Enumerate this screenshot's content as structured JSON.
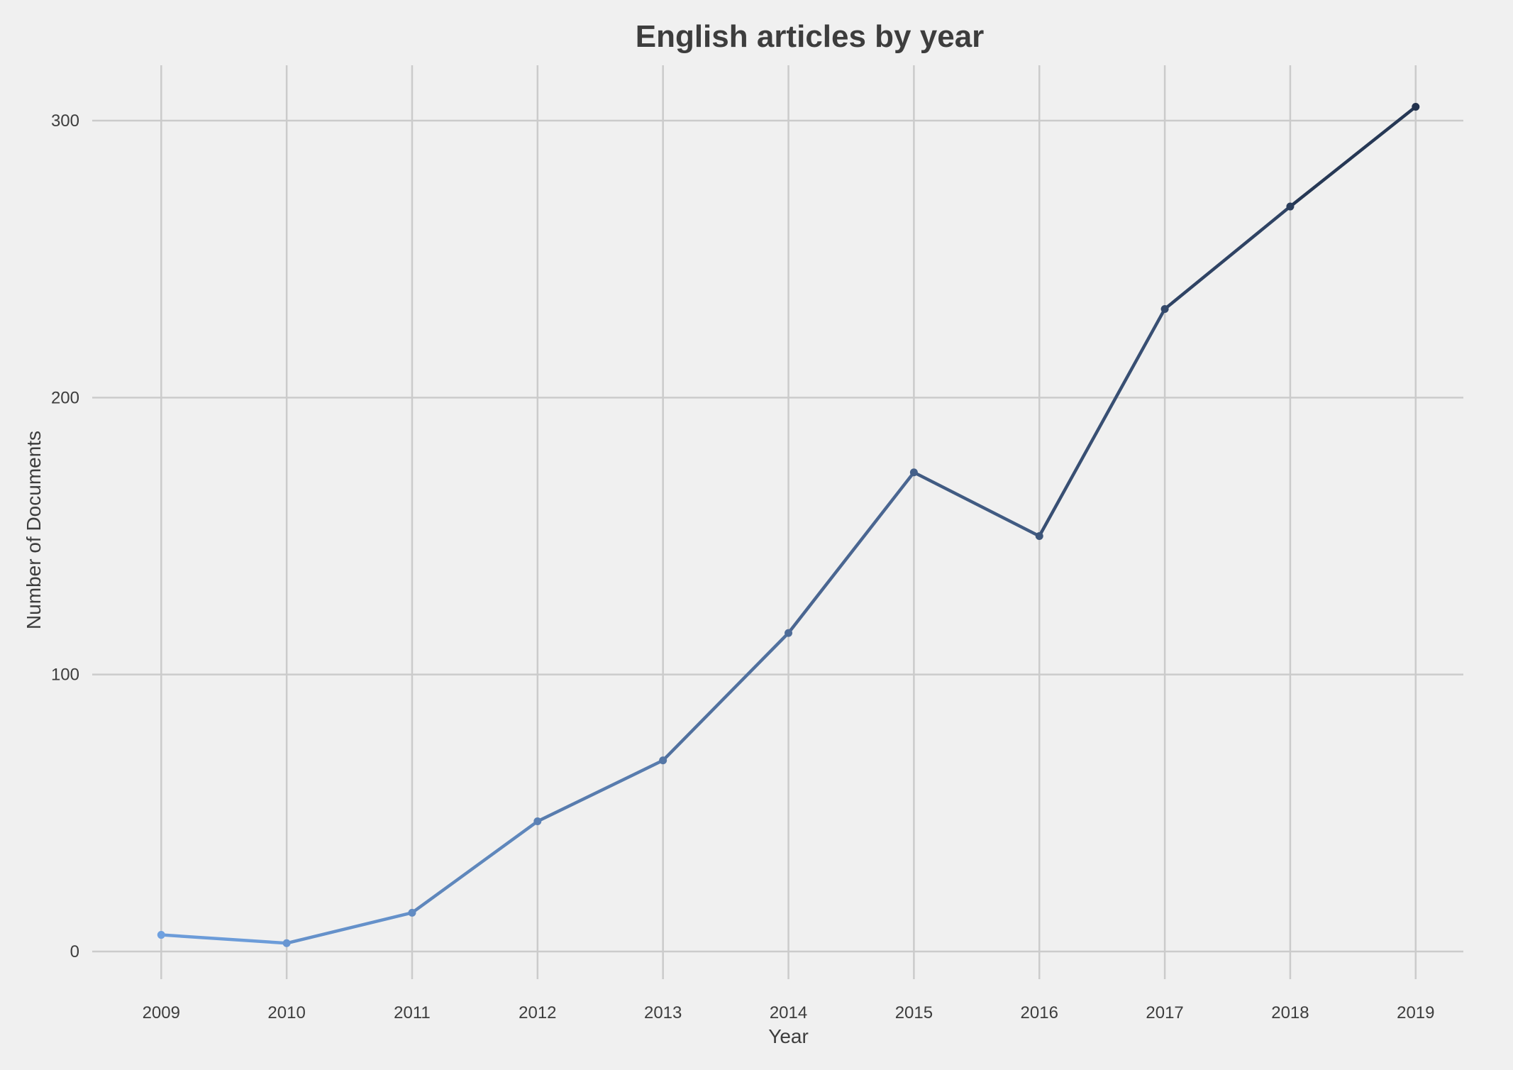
{
  "chart_data": {
    "type": "line",
    "title": "English articles by year",
    "xlabel": "Year",
    "ylabel": "Number of Documents",
    "x": [
      2009,
      2010,
      2011,
      2012,
      2013,
      2014,
      2015,
      2016,
      2017,
      2018,
      2019
    ],
    "x_tick_labels": [
      "2009",
      "2010",
      "2011",
      "2012",
      "2013",
      "2014",
      "2015",
      "2016",
      "2017",
      "2018",
      "2019"
    ],
    "y_ticks": [
      0,
      100,
      200,
      300
    ],
    "y_tick_labels": [
      "0",
      "100",
      "200",
      "300"
    ],
    "xlim": [
      2008.45,
      2019.38
    ],
    "ylim": [
      -10,
      320
    ],
    "grid": true,
    "legend": "none",
    "series": [
      {
        "values": [
          6,
          3,
          14,
          47,
          69,
          115,
          173,
          150,
          232,
          269,
          305
        ],
        "color_gradient": [
          "#6fa1e0",
          "#4e6c98",
          "#22324d"
        ]
      }
    ]
  }
}
